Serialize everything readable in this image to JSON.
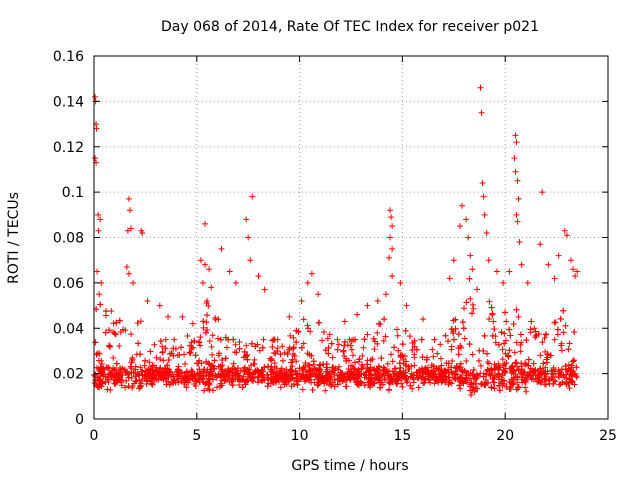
{
  "chart_data": {
    "type": "scatter",
    "title": "Day 068 of 2014, Rate Of TEC Index for receiver p021",
    "xlabel": "GPS time / hours",
    "ylabel": "ROTI / TECUs",
    "xlim": [
      0,
      25
    ],
    "ylim": [
      0,
      0.16
    ],
    "x_ticks": [
      0,
      5,
      10,
      15,
      20,
      25
    ],
    "y_ticks": [
      0,
      0.02,
      0.04,
      0.06,
      0.08,
      0.1,
      0.12,
      0.14,
      0.16
    ],
    "x_tick_labels": [
      "0",
      "5",
      "10",
      "15",
      "20",
      "25"
    ],
    "y_tick_labels": [
      "0",
      "0.02",
      "0.04",
      "0.06",
      "0.08",
      "0.1",
      "0.12",
      "0.14",
      "0.16"
    ],
    "grid": true,
    "marker": "+",
    "color": "#ff0000",
    "x_range_observed": [
      0,
      23.5
    ],
    "bulk_band": [
      0.005,
      0.035
    ],
    "series": [
      {
        "name": "ROTI",
        "points": [
          [
            0.05,
            0.142
          ],
          [
            0.08,
            0.14
          ],
          [
            0.1,
            0.13
          ],
          [
            0.12,
            0.128
          ],
          [
            0.05,
            0.115
          ],
          [
            0.1,
            0.113
          ],
          [
            0.2,
            0.09
          ],
          [
            0.3,
            0.088
          ],
          [
            0.22,
            0.083
          ],
          [
            0.15,
            0.065
          ],
          [
            0.35,
            0.06
          ],
          [
            0.25,
            0.055
          ],
          [
            1.7,
            0.097
          ],
          [
            1.75,
            0.092
          ],
          [
            1.65,
            0.083
          ],
          [
            1.8,
            0.084
          ],
          [
            1.6,
            0.067
          ],
          [
            1.7,
            0.064
          ],
          [
            1.9,
            0.06
          ],
          [
            2.3,
            0.083
          ],
          [
            2.35,
            0.082
          ],
          [
            2.6,
            0.052
          ],
          [
            3.2,
            0.05
          ],
          [
            3.6,
            0.045
          ],
          [
            4.3,
            0.045
          ],
          [
            5.4,
            0.086
          ],
          [
            5.2,
            0.07
          ],
          [
            5.4,
            0.068
          ],
          [
            5.6,
            0.066
          ],
          [
            5.3,
            0.06
          ],
          [
            5.7,
            0.058
          ],
          [
            5.5,
            0.052
          ],
          [
            6.2,
            0.075
          ],
          [
            6.6,
            0.065
          ],
          [
            6.9,
            0.06
          ],
          [
            7.4,
            0.088
          ],
          [
            7.5,
            0.08
          ],
          [
            7.7,
            0.098
          ],
          [
            7.6,
            0.07
          ],
          [
            8.0,
            0.063
          ],
          [
            8.3,
            0.057
          ],
          [
            9.5,
            0.045
          ],
          [
            10.1,
            0.052
          ],
          [
            10.4,
            0.06
          ],
          [
            10.6,
            0.064
          ],
          [
            10.9,
            0.055
          ],
          [
            12.2,
            0.043
          ],
          [
            12.8,
            0.046
          ],
          [
            13.3,
            0.05
          ],
          [
            13.8,
            0.052
          ],
          [
            14.2,
            0.055
          ],
          [
            14.4,
            0.092
          ],
          [
            14.45,
            0.089
          ],
          [
            14.5,
            0.085
          ],
          [
            14.4,
            0.08
          ],
          [
            14.5,
            0.075
          ],
          [
            14.35,
            0.071
          ],
          [
            14.5,
            0.063
          ],
          [
            14.9,
            0.06
          ],
          [
            15.2,
            0.05
          ],
          [
            16.0,
            0.044
          ],
          [
            17.3,
            0.062
          ],
          [
            17.5,
            0.07
          ],
          [
            17.8,
            0.085
          ],
          [
            17.9,
            0.094
          ],
          [
            18.1,
            0.088
          ],
          [
            18.2,
            0.08
          ],
          [
            18.3,
            0.072
          ],
          [
            18.4,
            0.066
          ],
          [
            18.8,
            0.146
          ],
          [
            18.85,
            0.135
          ],
          [
            18.9,
            0.104
          ],
          [
            18.95,
            0.098
          ],
          [
            19.0,
            0.09
          ],
          [
            19.1,
            0.082
          ],
          [
            19.2,
            0.07
          ],
          [
            19.6,
            0.065
          ],
          [
            19.9,
            0.06
          ],
          [
            20.2,
            0.065
          ],
          [
            20.5,
            0.125
          ],
          [
            20.55,
            0.122
          ],
          [
            20.45,
            0.115
          ],
          [
            20.5,
            0.109
          ],
          [
            20.6,
            0.105
          ],
          [
            20.65,
            0.097
          ],
          [
            20.55,
            0.09
          ],
          [
            20.6,
            0.087
          ],
          [
            20.7,
            0.078
          ],
          [
            20.8,
            0.068
          ],
          [
            21.1,
            0.06
          ],
          [
            21.8,
            0.1
          ],
          [
            21.7,
            0.077
          ],
          [
            22.1,
            0.068
          ],
          [
            22.4,
            0.062
          ],
          [
            22.6,
            0.072
          ],
          [
            22.9,
            0.083
          ],
          [
            23.0,
            0.081
          ],
          [
            23.2,
            0.07
          ],
          [
            23.3,
            0.066
          ],
          [
            23.4,
            0.063
          ],
          [
            23.5,
            0.065
          ]
        ]
      }
    ]
  }
}
